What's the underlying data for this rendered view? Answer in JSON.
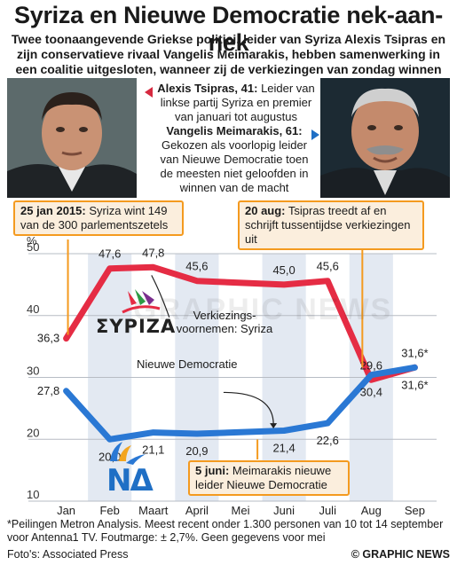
{
  "title": "Syriza en Nieuwe Democratie nek-aan-nek",
  "subtitle": "Twee toonaangevende Griekse politici, leider van Syriza Alexis Tsipras en zijn conservatieve rivaal Vangelis Meimarakis, hebben samenwerking in een coalitie uitgesloten, wanneer zij de verkiezingen van zondag winnen",
  "tsipras": {
    "name": "Alexis Tsipras, 41:",
    "text": "Leider van linkse partij Syriza en premier van januari tot augustus"
  },
  "meimarakis": {
    "name": "Vangelis Meimarakis, 61:",
    "text": "Gekozen als voorlopig leider van Nieuwe Democratie toen de meesten niet geloofden in winnen van de macht"
  },
  "callouts": {
    "jan": {
      "date": "25 jan 2015:",
      "text": "Syriza wint 149 van de 300 parlementszetels"
    },
    "aug": {
      "date": "20 aug:",
      "text": "Tsipras treedt af en schrijft tussentijdse verkiezingen uit"
    },
    "jun": {
      "date": "5 juni:",
      "text": "Meimarakis nieuwe leider Nieuwe Democratie"
    }
  },
  "series_labels": {
    "syriza": "Verkiezings-voornemen: Syriza",
    "nd": "Nieuwe Democratie"
  },
  "logos": {
    "syriza_text": "ΣΥΡΙΖΑ",
    "nd_text": "ΝΔ"
  },
  "watermark": "GRAPHIC NEWS",
  "footnote": "*Peilingen Metron Analysis. Meest recent onder 1.300 personen van 10 tot 14 september voor Antenna1 TV. Foutmarge: ± 2,7%. Geen gegevens voor mei",
  "source": "Foto's: Associated Press",
  "credit": "© GRAPHIC NEWS",
  "colors": {
    "syriza": "#e52c44",
    "nd": "#2a78d4",
    "callout_border": "#f49a1f",
    "callout_fill": "#fbeedd",
    "band": "#e3e9f2"
  },
  "chart_data": {
    "type": "line",
    "ylabel": "%",
    "ylim": [
      10,
      50
    ],
    "yticks": [
      10,
      20,
      30,
      40,
      50
    ],
    "categories": [
      "Jan",
      "Feb",
      "Maart",
      "April",
      "Mei",
      "Juni",
      "Juli",
      "Aug",
      "Sep"
    ],
    "series": [
      {
        "key": "syriza",
        "values": [
          36.3,
          47.6,
          47.8,
          45.6,
          null,
          45.0,
          45.6,
          29.6,
          31.6
        ],
        "labels": [
          "36,3",
          "47,6",
          "47,8",
          "45,6",
          "",
          "45,0",
          "45,6",
          "29,6",
          "31,6*"
        ]
      },
      {
        "key": "nd",
        "values": [
          27.8,
          20.0,
          21.1,
          20.9,
          null,
          21.4,
          22.6,
          30.4,
          31.6
        ],
        "labels": [
          "27,8",
          "20,0",
          "21,1",
          "20,9",
          "",
          "21,4",
          "22,6",
          "30,4",
          "31,6*"
        ]
      }
    ]
  }
}
